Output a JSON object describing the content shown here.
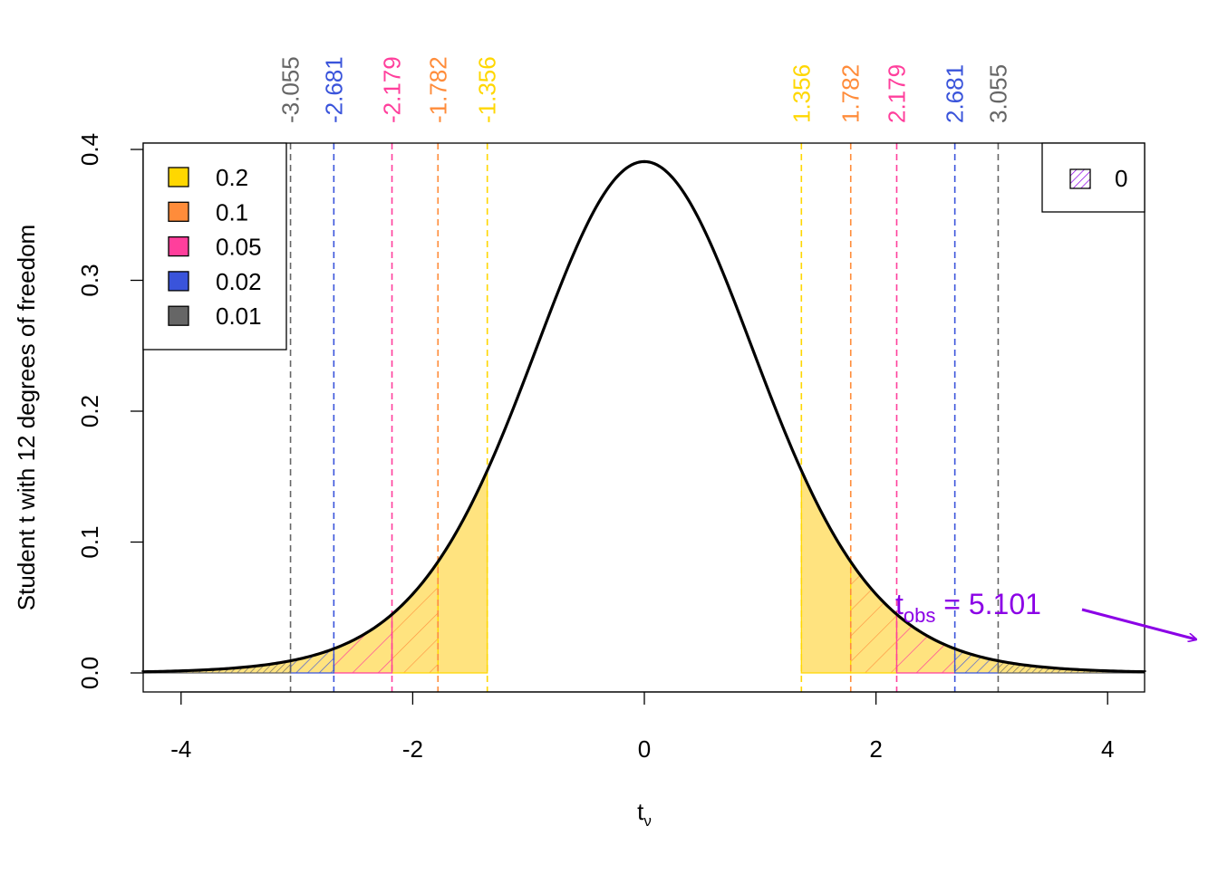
{
  "chart_data": {
    "type": "area",
    "distribution": "student-t",
    "df": 12,
    "xlabel": "t",
    "xlabel_sub": "ν",
    "ylabel": "Student t with 12 degrees of freedom",
    "xlim": [
      -4.3,
      4.3
    ],
    "ylim": [
      0,
      0.4
    ],
    "x_ticks": [
      -4,
      -2,
      0,
      2,
      4
    ],
    "x_tick_labels": [
      "-4",
      "-2",
      "0",
      "2",
      "4"
    ],
    "y_ticks": [
      0,
      0.1,
      0.2,
      0.3,
      0.4
    ],
    "y_tick_labels": [
      "0.0",
      "0.1",
      "0.2",
      "0.3",
      "0.4"
    ],
    "alpha_levels": [
      {
        "alpha": "0.2",
        "critical": 1.356,
        "color": "#FFD700",
        "neg_label": "-1.356",
        "pos_label": "1.356"
      },
      {
        "alpha": "0.1",
        "critical": 1.782,
        "color": "#FF8C3A",
        "neg_label": "-1.782",
        "pos_label": "1.782"
      },
      {
        "alpha": "0.05",
        "critical": 2.179,
        "color": "#FF3F9C",
        "neg_label": "-2.179",
        "pos_label": "2.179"
      },
      {
        "alpha": "0.02",
        "critical": 2.681,
        "color": "#3A54DB",
        "neg_label": "-2.681",
        "pos_label": "2.681"
      },
      {
        "alpha": "0.01",
        "critical": 3.055,
        "color": "#666666",
        "neg_label": "-3.055",
        "pos_label": "3.055"
      }
    ],
    "legend": {
      "alpha": {
        "placement": "top-left",
        "entries": [
          "0.2",
          "0.1",
          "0.05",
          "0.02",
          "0.01"
        ]
      },
      "pvalue": {
        "placement": "top-right",
        "label": "0",
        "color": "#8B00E6"
      }
    },
    "observed": {
      "t_obs": 5.101,
      "label_main": "t",
      "label_sub": "obs",
      "label_value": " = 5.101",
      "color": "#8B00E6"
    },
    "grid": false
  }
}
